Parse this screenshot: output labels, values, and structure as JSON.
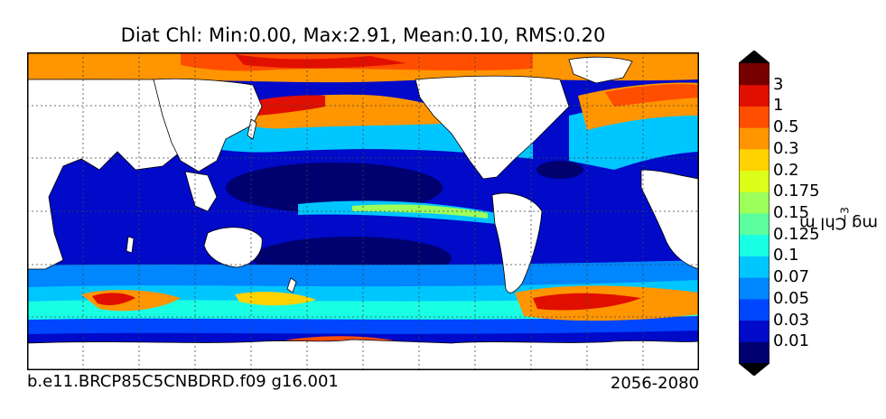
{
  "title": "Diat Chl: Min:0.00, Max:2.91, Mean:0.10, RMS:0.20",
  "run_id": "b.e11.BRCP85C5CNBDRD.f09 g16.001",
  "period": "2056-2080",
  "colorbar": {
    "unit_base": "mg Chl m",
    "unit_exp": "−3",
    "ticks": [
      "3",
      "1",
      "0.5",
      "0.3",
      "0.2",
      "0.175",
      "0.15",
      "0.125",
      "0.1",
      "0.07",
      "0.05",
      "0.03",
      "0.01"
    ],
    "colors_low_to_high": [
      "#00006f",
      "#000ac8",
      "#0046ff",
      "#0086ff",
      "#00c6ff",
      "#19ffe4",
      "#5bff9e",
      "#9cff5a",
      "#dcff19",
      "#ffd200",
      "#ff9500",
      "#ff4e00",
      "#e10f00",
      "#780000"
    ],
    "arrow_min": "#000000",
    "arrow_max": "#000000"
  },
  "chart_data": {
    "type": "heatmap",
    "title": "Diat Chl: Min:0.00, Max:2.91, Mean:0.10, RMS:0.20",
    "variable": "Diat Chl",
    "stats": {
      "min": 0.0,
      "max": 2.91,
      "mean": 0.1,
      "rms": 0.2
    },
    "units": "mg Chl m^-3",
    "contour_levels": [
      0.01,
      0.03,
      0.05,
      0.07,
      0.1,
      0.125,
      0.15,
      0.175,
      0.2,
      0.3,
      0.5,
      1,
      3
    ],
    "map_projection": "global lat-lon, Pacific centered",
    "grid": true
  }
}
